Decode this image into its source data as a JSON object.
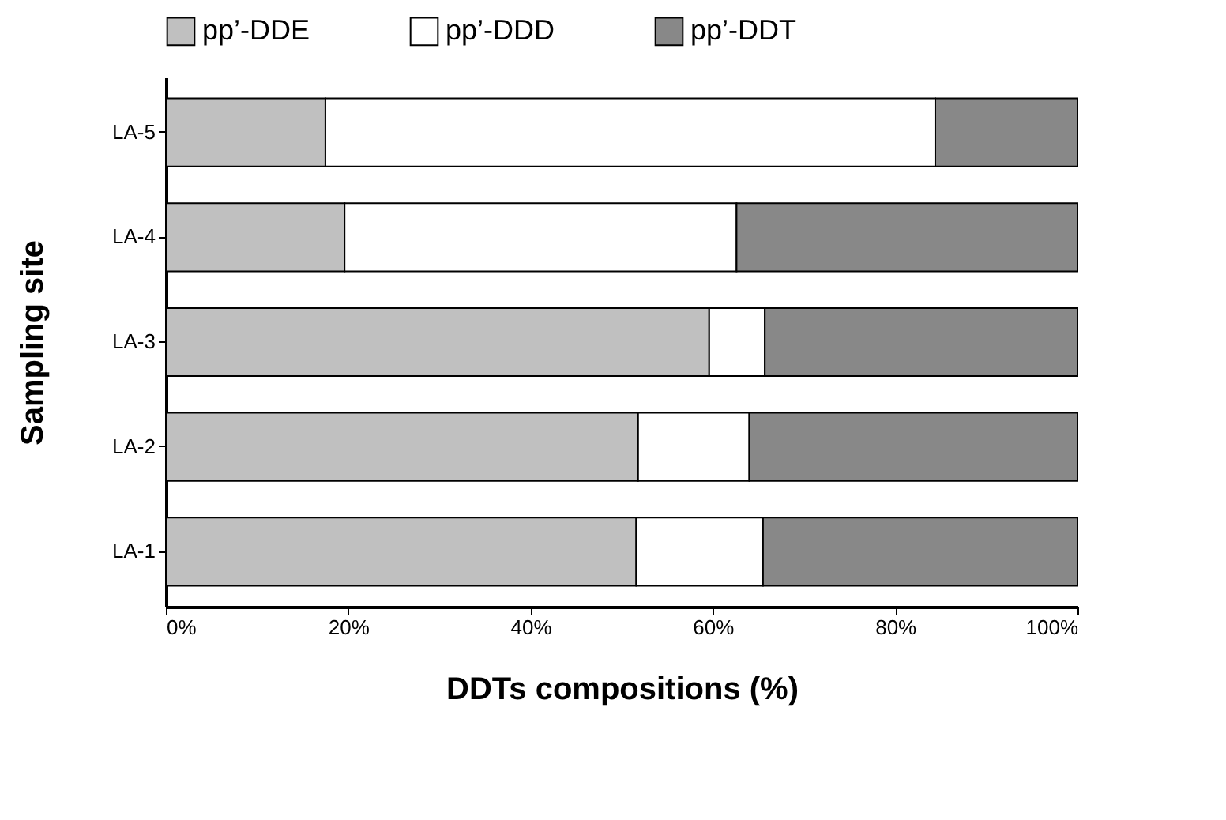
{
  "chart_data": {
    "type": "bar",
    "orientation": "horizontal",
    "stacked": true,
    "xlabel": "DDTs compositions (%)",
    "ylabel": "Sampling site",
    "categories": [
      "LA-5",
      "LA-4",
      "LA-3",
      "LA-2",
      "LA-1"
    ],
    "series": [
      {
        "name": "pp’-DDE",
        "color": "#c0c0c0",
        "values": [
          17.5,
          19.6,
          59.6,
          51.8,
          51.6
        ]
      },
      {
        "name": "pp’-DDD",
        "color": "#ffffff",
        "values": [
          66.9,
          43.0,
          6.1,
          12.2,
          13.9
        ]
      },
      {
        "name": "pp’-DDT",
        "color": "#888888",
        "values": [
          15.6,
          37.4,
          34.3,
          36.0,
          34.5
        ]
      }
    ],
    "xlim": [
      0,
      100
    ],
    "xticks": [
      {
        "value": 0,
        "label": "0%"
      },
      {
        "value": 20,
        "label": "20%"
      },
      {
        "value": 40,
        "label": "40%"
      },
      {
        "value": 60,
        "label": "60%"
      },
      {
        "value": 80,
        "label": "80%"
      },
      {
        "value": 100,
        "label": "100%"
      }
    ],
    "grid": false,
    "legend": "top"
  }
}
